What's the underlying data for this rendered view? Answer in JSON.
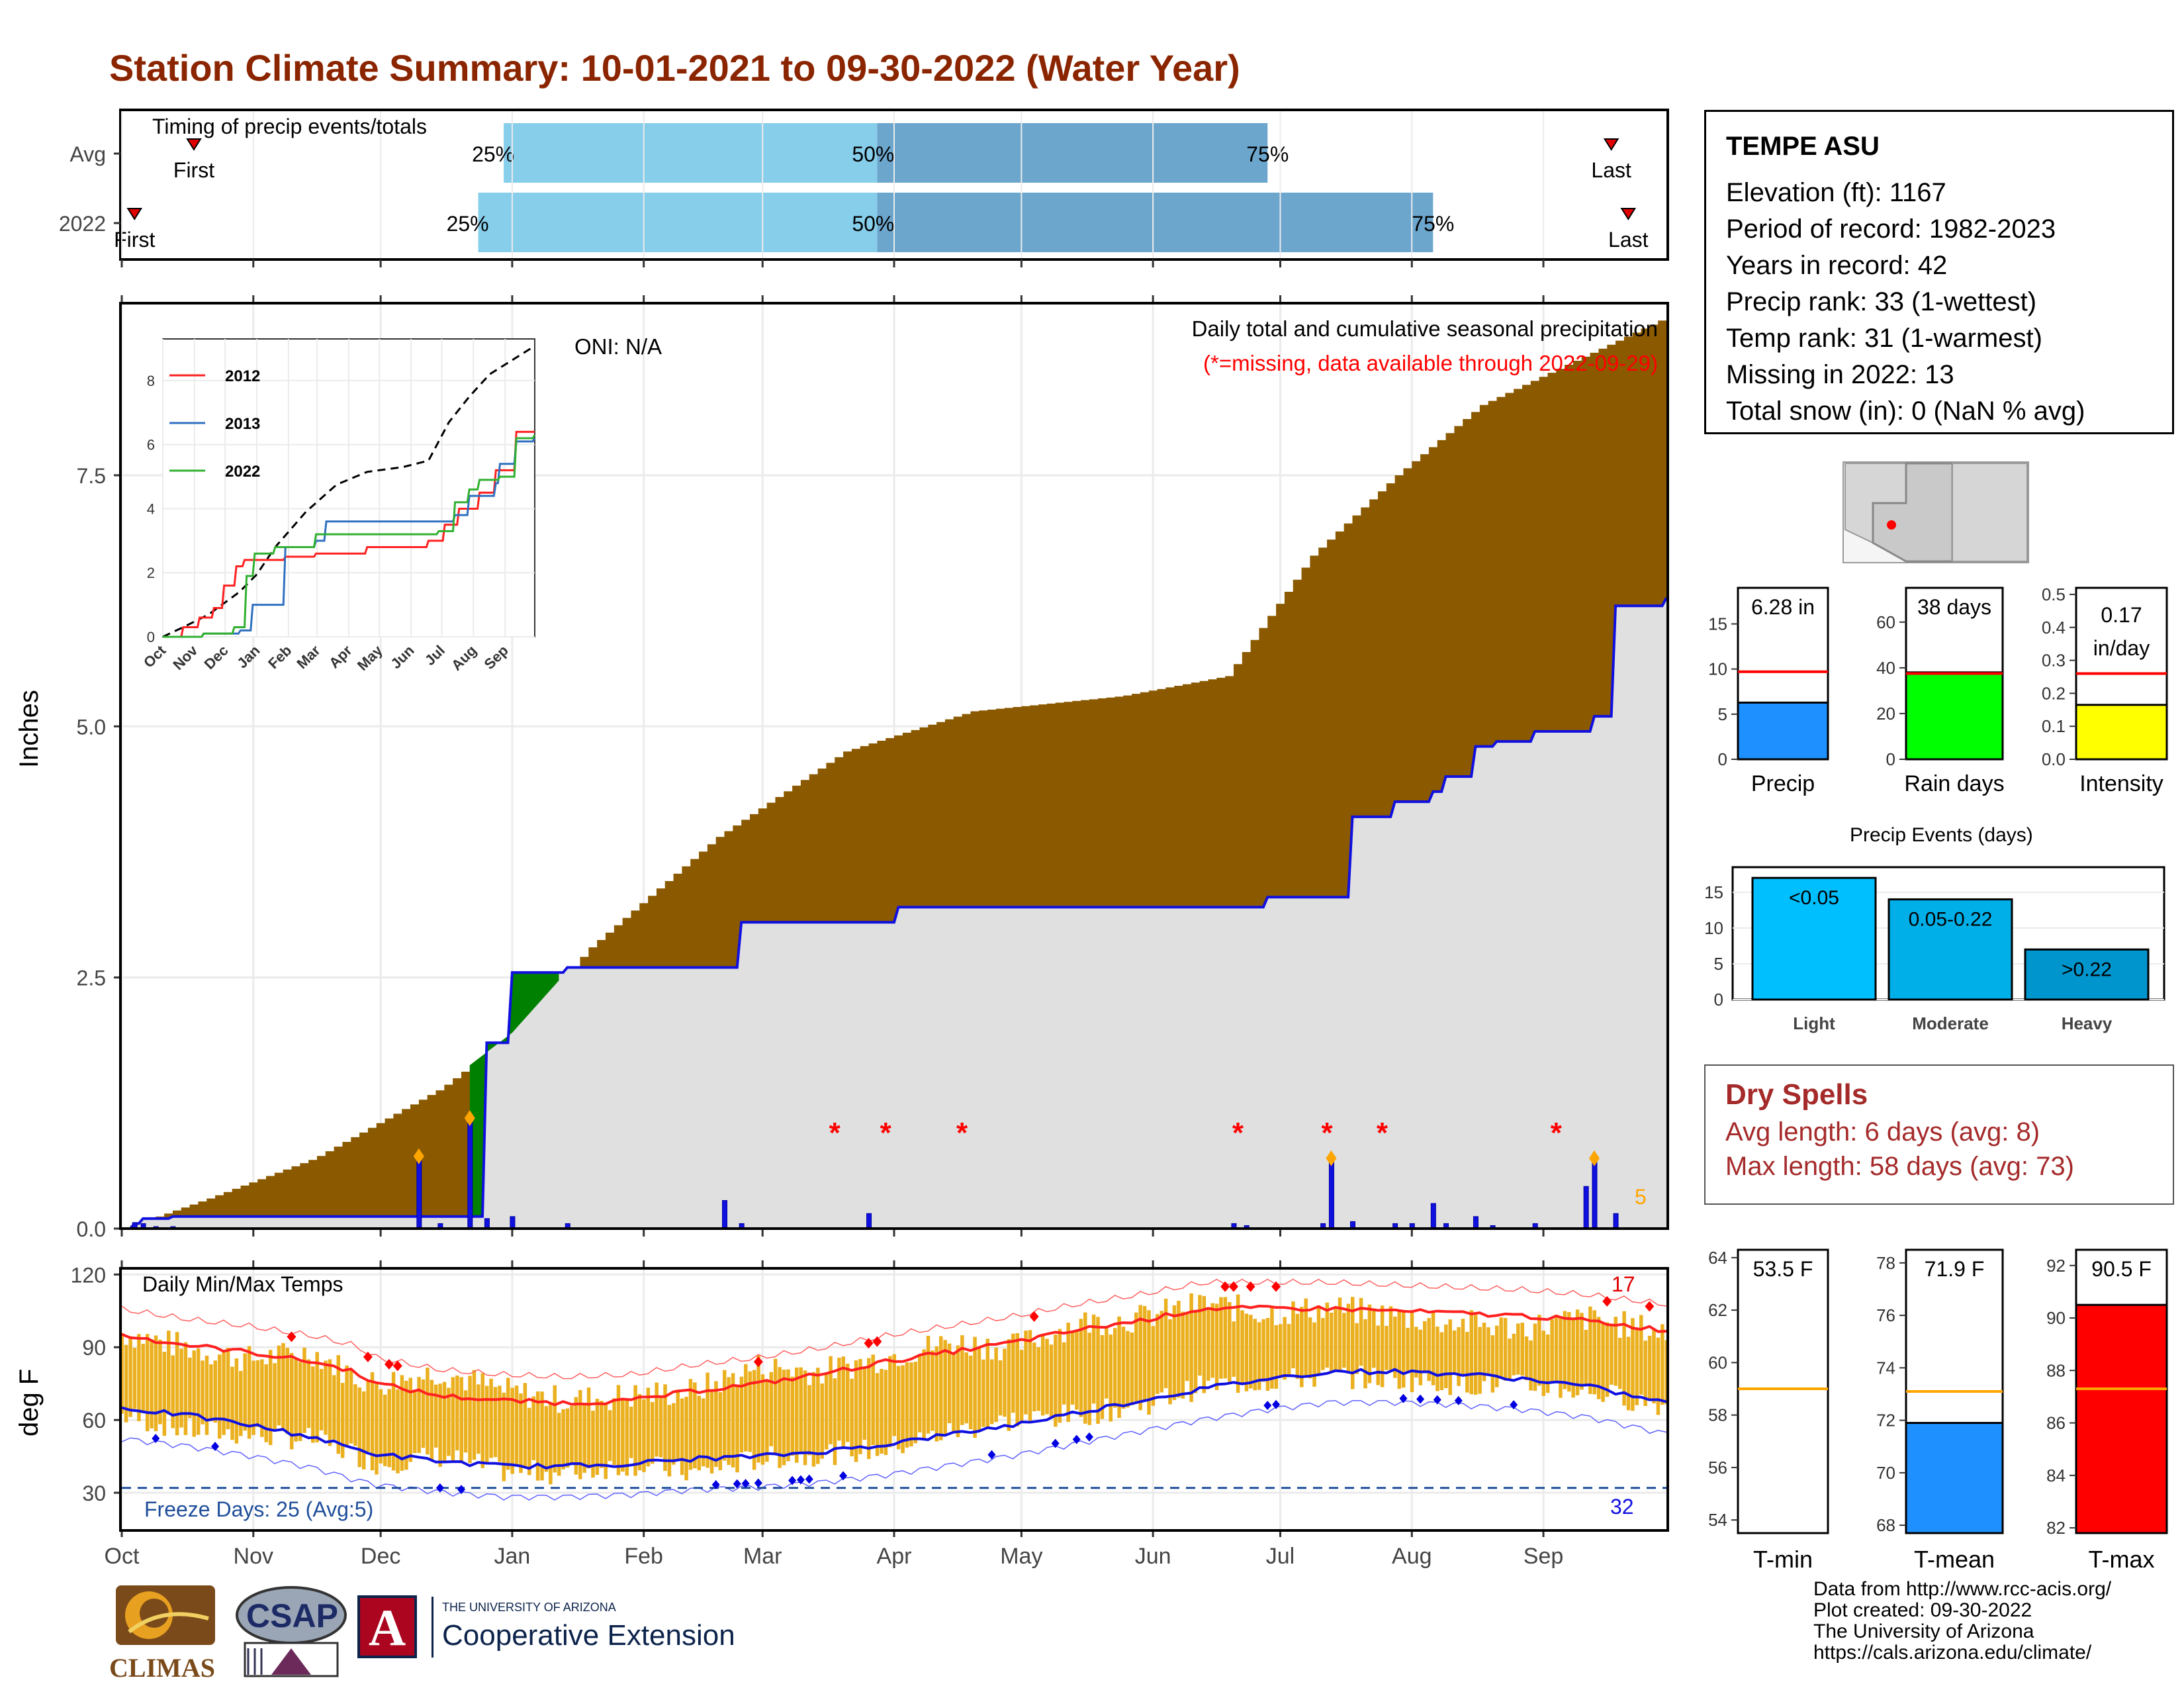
{
  "title": "Station Climate Summary: 10-01-2021 to 09-30-2022 (Water Year)",
  "colors": {
    "title": "#8B2500",
    "cumulative_fill": "#8B5A00",
    "avg_fill": "#E0E0E0",
    "line_2022": "#1010E0",
    "wetter_fill": "#008000",
    "temp_bar": "#EBB020",
    "tmax_line": "#FF2020",
    "tmin_line": "#1010E0",
    "freeze_line": "#1F4E9A",
    "light_blue": "#87CEEB",
    "mid_blue": "#6CA6CD"
  },
  "timing": {
    "title": "Timing of precip events/totals",
    "rows": [
      {
        "label": "Avg",
        "first_label": "First",
        "last_label": "Last",
        "p25": "25%",
        "p50": "50%",
        "p75": "75%",
        "first_day": 17,
        "last_day": 351,
        "q25_day": 90,
        "q50_day": 178,
        "q75_day": 270
      },
      {
        "label": "2022",
        "first_label": "First",
        "last_label": "Last",
        "p25": "25%",
        "p50": "50%",
        "p75": "75%",
        "first_day": 3,
        "last_day": 355,
        "q25_day": 84,
        "q50_day": 178,
        "q75_day": 309
      }
    ]
  },
  "precip_panel": {
    "ylabel": "Inches",
    "oni": "ONI: N/A",
    "subtitle": "Daily total and cumulative seasonal precipitation",
    "missing_note": "(*=missing, data available through 2022-09-29)",
    "count_label": "5"
  },
  "inset": {
    "series_labels": [
      "2012",
      "2013",
      "2022"
    ],
    "series_colors": [
      "#FF2020",
      "#3070C0",
      "#30B030"
    ],
    "months": [
      "Oct",
      "Nov",
      "Dec",
      "Jan",
      "Feb",
      "Mar",
      "Apr",
      "May",
      "Jun",
      "Jul",
      "Aug",
      "Sep"
    ],
    "yticks": [
      "0",
      "2",
      "4",
      "6",
      "8"
    ]
  },
  "station": {
    "name": "TEMPE ASU",
    "lines": [
      "Elevation (ft): 1167",
      "Period of record: 1982-2023",
      "Years in record: 42",
      "Precip rank: 33 (1-wettest)",
      "Temp rank: 31 (1-warmest)",
      "Missing in 2022: 13",
      "Total snow (in): 0 (NaN % avg)"
    ]
  },
  "mini_bars": [
    {
      "label": "Precip",
      "value_text": "6.28 in",
      "value": 6.28,
      "avg": 9.7,
      "ymax": 19,
      "ticks": [
        "0",
        "5",
        "10",
        "15"
      ],
      "tickvals": [
        0,
        5,
        10,
        15
      ],
      "color": "#1E90FF"
    },
    {
      "label": "Rain days",
      "value_text": "38 days",
      "value": 38,
      "avg": 37.5,
      "ymax": 75,
      "ticks": [
        "0",
        "20",
        "40",
        "60"
      ],
      "tickvals": [
        0,
        20,
        40,
        60
      ],
      "color": "#00FF00"
    },
    {
      "label": "Intensity",
      "value_text_1": "0.17",
      "value_text_2": "in/day",
      "value": 0.165,
      "avg": 0.26,
      "ymax": 0.52,
      "ticks": [
        "0.0",
        "0.1",
        "0.2",
        "0.3",
        "0.4",
        "0.5"
      ],
      "tickvals": [
        0,
        0.1,
        0.2,
        0.3,
        0.4,
        0.5
      ],
      "color": "#FFFF00"
    }
  ],
  "events": {
    "title": "Precip Events (days)",
    "bars": [
      {
        "cat": "Light",
        "label": "<0.05",
        "value": 17,
        "color": "#00BFFF"
      },
      {
        "cat": "Moderate",
        "label": "0.05-0.22",
        "value": 14,
        "color": "#00AFE8"
      },
      {
        "cat": "Heavy",
        "label": ">0.22",
        "value": 7,
        "color": "#0095CC"
      }
    ],
    "yticks": [
      "0",
      "5",
      "10",
      "15"
    ]
  },
  "dry_spells": {
    "title": "Dry Spells",
    "avg": "Avg length: 6 days (avg: 8)",
    "max": "Max length: 58 days (avg: 73)"
  },
  "temp_panel": {
    "ylabel": "deg F",
    "title": "Daily Min/Max Temps",
    "freeze": "Freeze Days: 25 (Avg:5)",
    "hot_count": "17",
    "cold_count": "32",
    "yticks": [
      "30",
      "60",
      "90",
      "120"
    ]
  },
  "temp_bars": [
    {
      "label": "T-min",
      "value_text": "53.5 F",
      "value": 53.5,
      "avg": 59,
      "ymin": 53.5,
      "ymax": 64.3,
      "ticks": [
        "54",
        "56",
        "58",
        "60",
        "62",
        "64"
      ],
      "color": "#FFFFFF"
    },
    {
      "label": "T-mean",
      "value_text": "71.9 F",
      "value": 71.9,
      "avg": 73.1,
      "ymin": 67.7,
      "ymax": 78.5,
      "ticks": [
        "68",
        "70",
        "72",
        "74",
        "76",
        "78"
      ],
      "color": "#1E90FF"
    },
    {
      "label": "T-max",
      "value_text": "90.5 F",
      "value": 90.5,
      "avg": 87.3,
      "ymin": 81.8,
      "ymax": 92.6,
      "ticks": [
        "82",
        "84",
        "86",
        "88",
        "90",
        "92"
      ],
      "color": "#FF0000"
    }
  ],
  "months_axis": [
    "Oct",
    "Nov",
    "Dec",
    "Jan",
    "Feb",
    "Mar",
    "Apr",
    "May",
    "Jun",
    "Jul",
    "Aug",
    "Sep"
  ],
  "footer": [
    "Data from http://www.rcc-acis.org/",
    "Plot created: 09-30-2022",
    "The University of Arizona",
    "https://cals.arizona.edu/climate/"
  ],
  "logos": {
    "climas": "CLIMAS",
    "csap": "CSAP",
    "ua_small": "THE UNIVERSITY OF ARIZONA",
    "ua_big": "Cooperative Extension",
    "ua_letter": "A"
  },
  "chart_data": {
    "type": "area",
    "title": "Station Climate Summary: 10-01-2021 to 09-30-2022 (Water Year)",
    "ylabel": "Inches",
    "ylim": [
      0,
      9.2
    ],
    "x_categories": [
      "Oct",
      "Nov",
      "Dec",
      "Jan",
      "Feb",
      "Mar",
      "Apr",
      "May",
      "Jun",
      "Jul",
      "Aug",
      "Sep"
    ],
    "avg_cumulative_days": [
      0,
      20,
      45,
      75,
      92,
      110,
      140,
      170,
      200,
      235,
      260,
      280,
      300,
      320,
      340,
      365
    ],
    "avg_cumulative": [
      0.0,
      0.3,
      0.7,
      1.4,
      1.95,
      2.8,
      3.9,
      4.75,
      5.15,
      5.3,
      5.5,
      6.7,
      7.5,
      8.2,
      8.6,
      9.1
    ],
    "cumulative_2022_days": [
      0,
      3,
      5,
      12,
      35,
      70,
      82,
      86,
      92,
      105,
      142,
      146,
      176,
      183,
      260,
      270,
      283,
      285,
      290,
      300,
      309,
      312,
      319,
      324,
      333,
      345,
      347,
      352,
      364
    ],
    "cumulative_2022": [
      0.0,
      0.05,
      0.1,
      0.12,
      0.12,
      0.12,
      0.12,
      1.85,
      2.55,
      2.6,
      2.6,
      3.05,
      3.05,
      3.2,
      3.2,
      3.3,
      3.3,
      3.3,
      4.1,
      4.25,
      4.35,
      4.5,
      4.8,
      4.85,
      4.95,
      4.95,
      5.1,
      6.2,
      6.28
    ],
    "daily_precip_days": [
      3,
      5,
      8,
      12,
      70,
      75,
      82,
      86,
      92,
      105,
      142,
      146,
      176,
      262,
      265,
      283,
      285,
      290,
      300,
      304,
      309,
      312,
      319,
      323,
      333,
      345,
      347,
      352
    ],
    "daily_precip": [
      0.06,
      0.05,
      0.02,
      0.02,
      0.72,
      0.05,
      1.1,
      0.1,
      0.12,
      0.05,
      0.28,
      0.05,
      0.15,
      0.05,
      0.03,
      0.05,
      0.7,
      0.07,
      0.05,
      0.05,
      0.25,
      0.05,
      0.12,
      0.03,
      0.05,
      0.42,
      0.7,
      0.15
    ],
    "missing_days": [
      168,
      180,
      198,
      263,
      284,
      297,
      338
    ],
    "tmax_days": [
      0,
      15,
      30,
      45,
      55,
      60,
      75,
      90,
      105,
      120,
      135,
      150,
      165,
      180,
      195,
      210,
      225,
      240,
      255,
      270,
      285,
      300,
      315,
      330,
      345,
      364
    ],
    "tmax_avg": [
      95,
      91,
      88,
      84,
      80,
      75,
      70,
      68,
      67,
      68,
      72,
      75,
      79,
      84,
      88,
      92,
      97,
      101,
      106,
      106,
      106,
      105,
      104,
      103,
      101,
      97
    ],
    "tmin_avg": [
      65,
      62,
      58,
      53,
      48,
      46,
      43,
      41,
      41,
      42,
      44,
      45,
      47,
      50,
      54,
      58,
      63,
      68,
      73,
      77,
      80,
      80,
      79,
      77,
      74,
      67
    ],
    "tmax_2022": [
      96,
      90,
      85,
      88,
      78,
      75,
      80,
      72,
      68,
      70,
      72,
      82,
      80,
      86,
      92,
      90,
      100,
      102,
      108,
      104,
      106,
      103,
      100,
      98,
      102,
      96
    ],
    "tmin_2022": [
      62,
      56,
      54,
      52,
      46,
      42,
      45,
      39,
      38,
      42,
      38,
      44,
      46,
      48,
      55,
      60,
      62,
      66,
      74,
      76,
      78,
      77,
      75,
      74,
      72,
      66
    ],
    "temp_ylim": [
      15,
      122
    ]
  }
}
